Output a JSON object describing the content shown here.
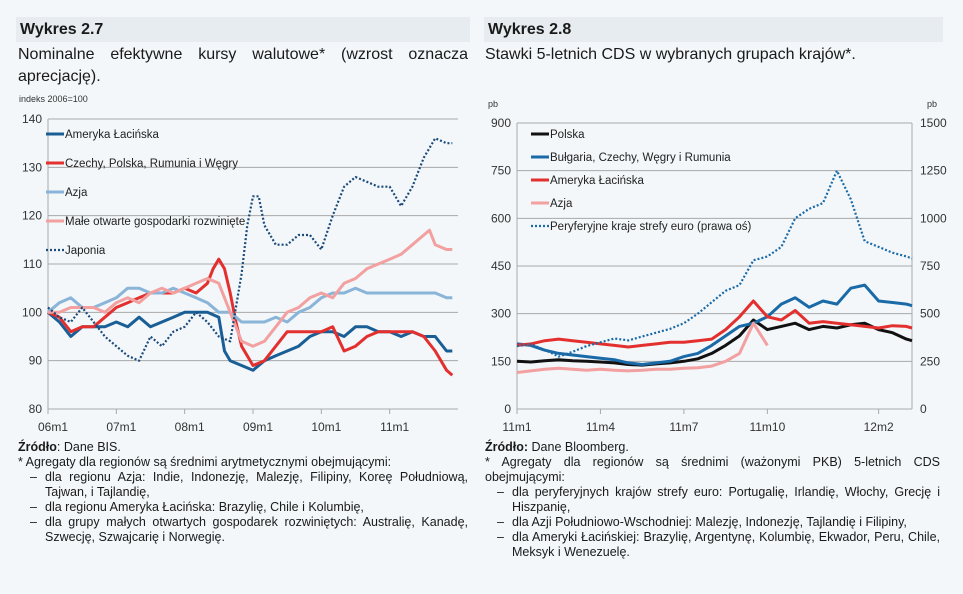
{
  "left": {
    "header": "Wykres 2.7",
    "subtitle": "Nominalne efektywne kursy walutowe* (wzrost oznacza aprecjację).",
    "unit": "indeks 2006=100",
    "source_label": "Źródło",
    "source_text": ": Dane BIS.",
    "note": "* Agregaty dla regionów są średnimi arytmetycznymi obejmującymi:",
    "items": [
      "dla regionu Azja: Indie, Indonezję, Malezję, Filipiny, Koreę Południową, Tajwan, i Tajlandię,",
      "dla regionu Ameryka Łacińska: Brazylię, Chile i Kolumbię,",
      "dla grupy małych otwartych gospodarek rozwiniętych: Australię, Kanadę, Szwecję, Szwajcarię i Norwegię."
    ]
  },
  "right": {
    "header": "Wykres 2.8",
    "subtitle": "Stawki 5-letnich CDS w wybranych grupach krajów*.",
    "unit_left": "pb",
    "unit_right": "pb",
    "source_label": "Źródło:",
    "source_text": " Dane Bloomberg.",
    "note": "* Agregaty dla regionów są średnimi (ważonymi PKB) 5-letnich CDS obejmującymi:",
    "items": [
      "dla peryferyjnych krajów strefy euro: Portugalię, Irlandię, Włochy, Grecję i Hiszpanię,",
      "dla Azji Południowo-Wschodniej: Malezję, Indonezję, Tajlandię i Filipiny,",
      "dla Ameryki Łacińskiej: Brazylię, Argentynę, Kolumbię, Ekwador, Peru, Chile, Meksyk i Wenezuelę."
    ]
  },
  "chart_data": [
    {
      "type": "line",
      "title": "Nominalne efektywne kursy walutowe",
      "ylabel": "indeks 2006=100",
      "ylim": [
        80,
        140
      ],
      "yticks": [
        80,
        90,
        100,
        110,
        120,
        130,
        140
      ],
      "xlim": [
        0,
        72
      ],
      "xticks": [
        {
          "x": 0,
          "label": "06m1"
        },
        {
          "x": 12,
          "label": "07m1"
        },
        {
          "x": 24,
          "label": "08m1"
        },
        {
          "x": 36,
          "label": "09m1"
        },
        {
          "x": 48,
          "label": "10m1"
        },
        {
          "x": 60,
          "label": "11m1"
        }
      ],
      "grid": true,
      "legend": "top-left",
      "series": [
        {
          "name": "Ameryka Łacińska",
          "color": "#1a5e96",
          "dash": false,
          "x": [
            0,
            2,
            4,
            6,
            8,
            10,
            12,
            14,
            16,
            18,
            20,
            22,
            24,
            26,
            28,
            30,
            31,
            32,
            34,
            36,
            37,
            38,
            40,
            42,
            44,
            46,
            48,
            50,
            52,
            54,
            56,
            58,
            60,
            62,
            64,
            66,
            68,
            70,
            71
          ],
          "values": [
            100,
            98,
            95,
            97,
            97,
            97,
            98,
            97,
            99,
            97,
            98,
            99,
            100,
            100,
            100,
            99,
            92,
            90,
            89,
            88,
            89,
            90,
            91,
            92,
            93,
            95,
            96,
            96,
            95,
            97,
            97,
            96,
            96,
            95,
            96,
            95,
            95,
            92,
            92
          ]
        },
        {
          "name": "Czechy, Polska, Rumunia i Węgry",
          "color": "#e3302f",
          "dash": false,
          "x": [
            0,
            2,
            4,
            6,
            8,
            10,
            12,
            14,
            16,
            18,
            20,
            22,
            24,
            26,
            28,
            29,
            30,
            31,
            32,
            33,
            34,
            36,
            38,
            40,
            42,
            44,
            46,
            48,
            50,
            52,
            54,
            56,
            58,
            60,
            62,
            64,
            66,
            68,
            70,
            71
          ],
          "values": [
            100,
            99,
            96,
            97,
            97,
            99,
            101,
            102,
            103,
            104,
            104,
            104,
            105,
            104,
            106,
            109,
            111,
            109,
            104,
            98,
            93,
            89,
            90,
            93,
            96,
            96,
            96,
            96,
            97,
            92,
            93,
            95,
            96,
            96,
            96,
            96,
            95,
            92,
            88,
            87
          ]
        },
        {
          "name": "Azja",
          "color": "#8ab4d8",
          "dash": false,
          "x": [
            0,
            2,
            4,
            6,
            8,
            10,
            12,
            14,
            16,
            18,
            20,
            22,
            24,
            26,
            28,
            30,
            32,
            34,
            36,
            38,
            40,
            42,
            44,
            46,
            48,
            50,
            52,
            54,
            56,
            58,
            60,
            62,
            64,
            66,
            68,
            70,
            71
          ],
          "values": [
            100,
            102,
            103,
            101,
            101,
            102,
            103,
            105,
            105,
            104,
            104,
            105,
            104,
            103,
            102,
            100,
            100,
            98,
            98,
            98,
            99,
            98,
            100,
            101,
            103,
            104,
            104,
            105,
            104,
            104,
            104,
            104,
            104,
            104,
            104,
            103,
            103
          ]
        },
        {
          "name": "Małe otwarte gospodarki rozwinięte",
          "color": "#f2a0a0",
          "dash": false,
          "x": [
            0,
            2,
            4,
            6,
            8,
            10,
            12,
            14,
            16,
            18,
            20,
            22,
            24,
            26,
            28,
            30,
            32,
            34,
            36,
            38,
            40,
            42,
            44,
            46,
            48,
            50,
            52,
            54,
            56,
            58,
            60,
            62,
            64,
            66,
            67,
            68,
            70,
            71
          ],
          "values": [
            100,
            100,
            101,
            101,
            101,
            100,
            102,
            103,
            102,
            104,
            105,
            104,
            105,
            106,
            107,
            106,
            100,
            94,
            93,
            94,
            97,
            100,
            101,
            103,
            104,
            103,
            106,
            107,
            109,
            110,
            111,
            112,
            114,
            116,
            117,
            114,
            113,
            113
          ]
        },
        {
          "name": "Japonia",
          "color": "#1a4a7a",
          "dash": true,
          "x": [
            0,
            2,
            4,
            6,
            8,
            10,
            12,
            14,
            16,
            18,
            20,
            22,
            24,
            26,
            28,
            30,
            32,
            34,
            35,
            36,
            37,
            38,
            40,
            42,
            44,
            46,
            48,
            50,
            52,
            54,
            56,
            58,
            60,
            62,
            64,
            66,
            68,
            70,
            71
          ],
          "values": [
            101,
            99,
            98,
            101,
            98,
            95,
            93,
            91,
            90,
            95,
            93,
            96,
            97,
            100,
            98,
            95,
            94,
            108,
            118,
            124,
            124,
            118,
            114,
            114,
            116,
            116,
            113,
            120,
            126,
            128,
            127,
            126,
            126,
            122,
            126,
            132,
            136,
            135,
            135
          ]
        }
      ]
    },
    {
      "type": "line",
      "title": "Stawki 5-letnich CDS",
      "ylabel": "pb",
      "ylim": [
        0,
        900
      ],
      "yticks": [
        0,
        150,
        300,
        450,
        600,
        750,
        900
      ],
      "y2label": "pb",
      "y2lim": [
        0,
        1500
      ],
      "y2ticks": [
        0,
        250,
        500,
        750,
        1000,
        1250,
        1500
      ],
      "xlim": [
        0,
        14.2
      ],
      "xticks": [
        {
          "x": 0,
          "label": "11m1"
        },
        {
          "x": 3,
          "label": "11m4"
        },
        {
          "x": 6,
          "label": "11m7"
        },
        {
          "x": 9,
          "label": "11m10"
        },
        {
          "x": 13,
          "label": "12m2"
        }
      ],
      "grid": true,
      "legend": "top-left",
      "series": [
        {
          "name": "Polska",
          "color": "#111111",
          "dash": false,
          "axis": "left",
          "x": [
            0,
            0.5,
            1,
            1.5,
            2,
            2.5,
            3,
            3.5,
            4,
            4.5,
            5,
            5.5,
            6,
            6.5,
            7,
            7.5,
            8,
            8.5,
            9,
            9.5,
            10,
            10.5,
            11,
            11.5,
            12,
            12.5,
            13,
            13.5,
            14,
            14.2
          ],
          "values": [
            150,
            148,
            152,
            155,
            152,
            150,
            148,
            145,
            140,
            138,
            142,
            145,
            150,
            158,
            175,
            200,
            230,
            280,
            250,
            260,
            270,
            250,
            260,
            255,
            265,
            270,
            250,
            240,
            220,
            215
          ]
        },
        {
          "name": "Bułgaria, Czechy, Węgry i Rumunia",
          "color": "#1a6aa8",
          "dash": false,
          "axis": "left",
          "x": [
            0,
            0.5,
            1,
            1.5,
            2,
            2.5,
            3,
            3.5,
            4,
            4.5,
            5,
            5.5,
            6,
            6.5,
            7,
            7.5,
            8,
            8.5,
            9,
            9.5,
            10,
            10.5,
            11,
            11.5,
            12,
            12.5,
            13,
            13.5,
            14,
            14.2
          ],
          "values": [
            205,
            200,
            185,
            175,
            170,
            165,
            160,
            155,
            145,
            140,
            145,
            150,
            165,
            175,
            200,
            230,
            260,
            270,
            290,
            330,
            350,
            320,
            340,
            330,
            380,
            390,
            340,
            335,
            330,
            325
          ]
        },
        {
          "name": "Ameryka Łacińska",
          "color": "#e3302f",
          "dash": false,
          "axis": "left",
          "x": [
            0,
            0.5,
            1,
            1.5,
            2,
            2.5,
            3,
            3.5,
            4,
            4.5,
            5,
            5.5,
            6,
            6.5,
            7,
            7.5,
            8,
            8.5,
            9,
            9.5,
            10,
            10.5,
            11,
            11.5,
            12,
            12.5,
            13,
            13.5,
            14,
            14.2
          ],
          "values": [
            200,
            205,
            215,
            220,
            215,
            210,
            205,
            200,
            195,
            200,
            205,
            210,
            210,
            215,
            220,
            250,
            290,
            340,
            290,
            280,
            310,
            270,
            275,
            270,
            265,
            260,
            255,
            262,
            260,
            255
          ]
        },
        {
          "name": "Azja",
          "color": "#f2a0a0",
          "dash": false,
          "axis": "left",
          "x": [
            0,
            0.5,
            1,
            1.5,
            2,
            2.5,
            3,
            3.5,
            4,
            4.5,
            5,
            5.5,
            6,
            6.5,
            7,
            7.5,
            8,
            8.5,
            9
          ],
          "values": [
            115,
            120,
            125,
            128,
            125,
            122,
            125,
            122,
            120,
            122,
            125,
            125,
            128,
            130,
            135,
            150,
            175,
            270,
            200
          ]
        },
        {
          "name": "Peryferyjne kraje strefy euro (prawa oś)",
          "color": "#1a6aa8",
          "dash": true,
          "axis": "right",
          "x": [
            0,
            0.5,
            1,
            1.5,
            2,
            2.5,
            3,
            3.5,
            4,
            4.5,
            5,
            5.5,
            6,
            6.5,
            7,
            7.5,
            8,
            8.5,
            9,
            9.5,
            10,
            10.5,
            11,
            11.5,
            12,
            12.5,
            13,
            13.5,
            14,
            14.2
          ],
          "values": [
            330,
            340,
            310,
            275,
            300,
            330,
            350,
            370,
            360,
            380,
            400,
            420,
            450,
            500,
            560,
            620,
            650,
            780,
            800,
            850,
            1000,
            1050,
            1080,
            1250,
            1100,
            880,
            850,
            820,
            800,
            790
          ]
        }
      ]
    }
  ]
}
